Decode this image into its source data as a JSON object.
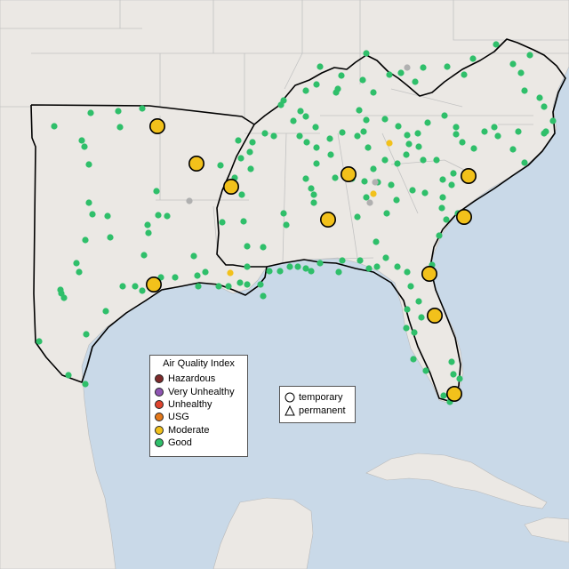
{
  "legend_aqi": {
    "title": "Air Quality Index",
    "items": [
      {
        "label": "Hazardous",
        "color": "#7e2a2a"
      },
      {
        "label": "Very Unhealthy",
        "color": "#8f55b3"
      },
      {
        "label": "Unhealthy",
        "color": "#e0442e"
      },
      {
        "label": "USG",
        "color": "#e4781a"
      },
      {
        "label": "Moderate",
        "color": "#f2c11b"
      },
      {
        "label": "Good",
        "color": "#2fbf6a"
      }
    ]
  },
  "legend_type": {
    "items": [
      {
        "label": "temporary",
        "shape": "circle-icon"
      },
      {
        "label": "permanent",
        "shape": "triangle-icon"
      }
    ]
  },
  "colors": {
    "water": "#c9d9e8",
    "land": "#ebe8e4",
    "outline": "#000000",
    "good": "#2fbf6a",
    "moderate": "#f2c11b"
  }
}
